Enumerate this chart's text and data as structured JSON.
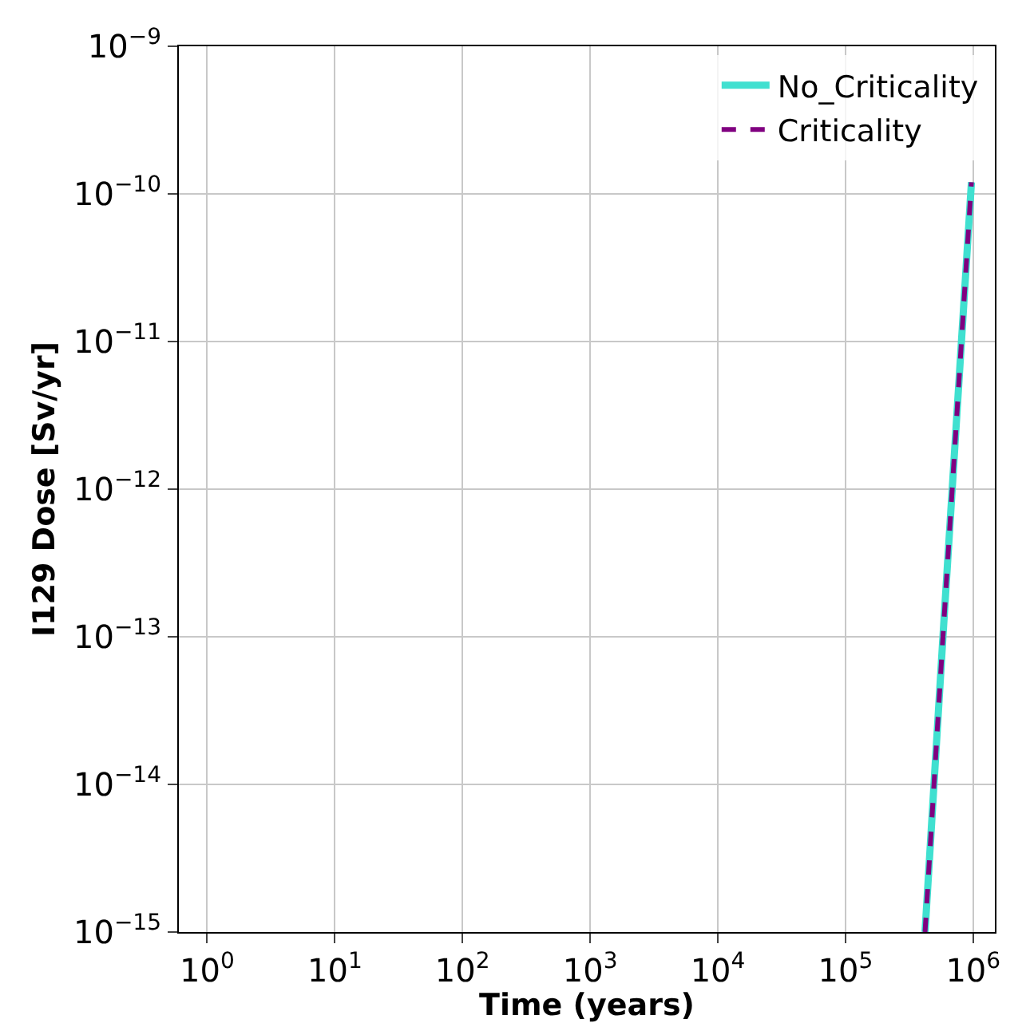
{
  "chart_data": {
    "type": "line",
    "xlabel": "Time (years)",
    "ylabel": "I129 Dose [Sv/yr]",
    "log": "xy",
    "xlim": [
      0.6,
      1480000
    ],
    "xticks": [
      {
        "value": 1,
        "label": "10$^{0}$"
      },
      {
        "value": 10,
        "label": "10$^{1}$"
      },
      {
        "value": 100,
        "label": "10$^{2}$"
      },
      {
        "value": 1000,
        "label": "10$^{3}$"
      },
      {
        "value": 10000,
        "label": "10$^{4}$"
      },
      {
        "value": 100000,
        "label": "10$^{5}$"
      },
      {
        "value": 1000000,
        "label": "10$^{6}$"
      }
    ],
    "ylim": [
      1e-15,
      1e-09
    ],
    "yticks": [
      {
        "value": 1e-15,
        "label": "10$^{−15}$"
      },
      {
        "value": 1e-14,
        "label": "10$^{−14}$"
      },
      {
        "value": 1e-13,
        "label": "10$^{−13}$"
      },
      {
        "value": 1e-12,
        "label": "10$^{−12}$"
      },
      {
        "value": 1e-11,
        "label": "10$^{−11}$"
      },
      {
        "value": 1e-10,
        "label": "10$^{−10}$"
      },
      {
        "value": 1e-09,
        "label": "10$^{−9}$"
      }
    ],
    "grid": true,
    "legend": "top right",
    "series": [
      {
        "name": "No_Criticality",
        "color": "#40e0d0",
        "line_style": "solid",
        "x": [
          420000,
          580000,
          810000,
          970000
        ],
        "values": [
          1e-15,
          1e-13,
          1e-11,
          1.2e-10
        ]
      },
      {
        "name": "Criticality",
        "color": "#800080",
        "line_style": "dashed",
        "x": [
          420000,
          580000,
          810000,
          970000
        ],
        "values": [
          1e-15,
          1e-13,
          1e-11,
          1.2e-10
        ]
      }
    ]
  }
}
